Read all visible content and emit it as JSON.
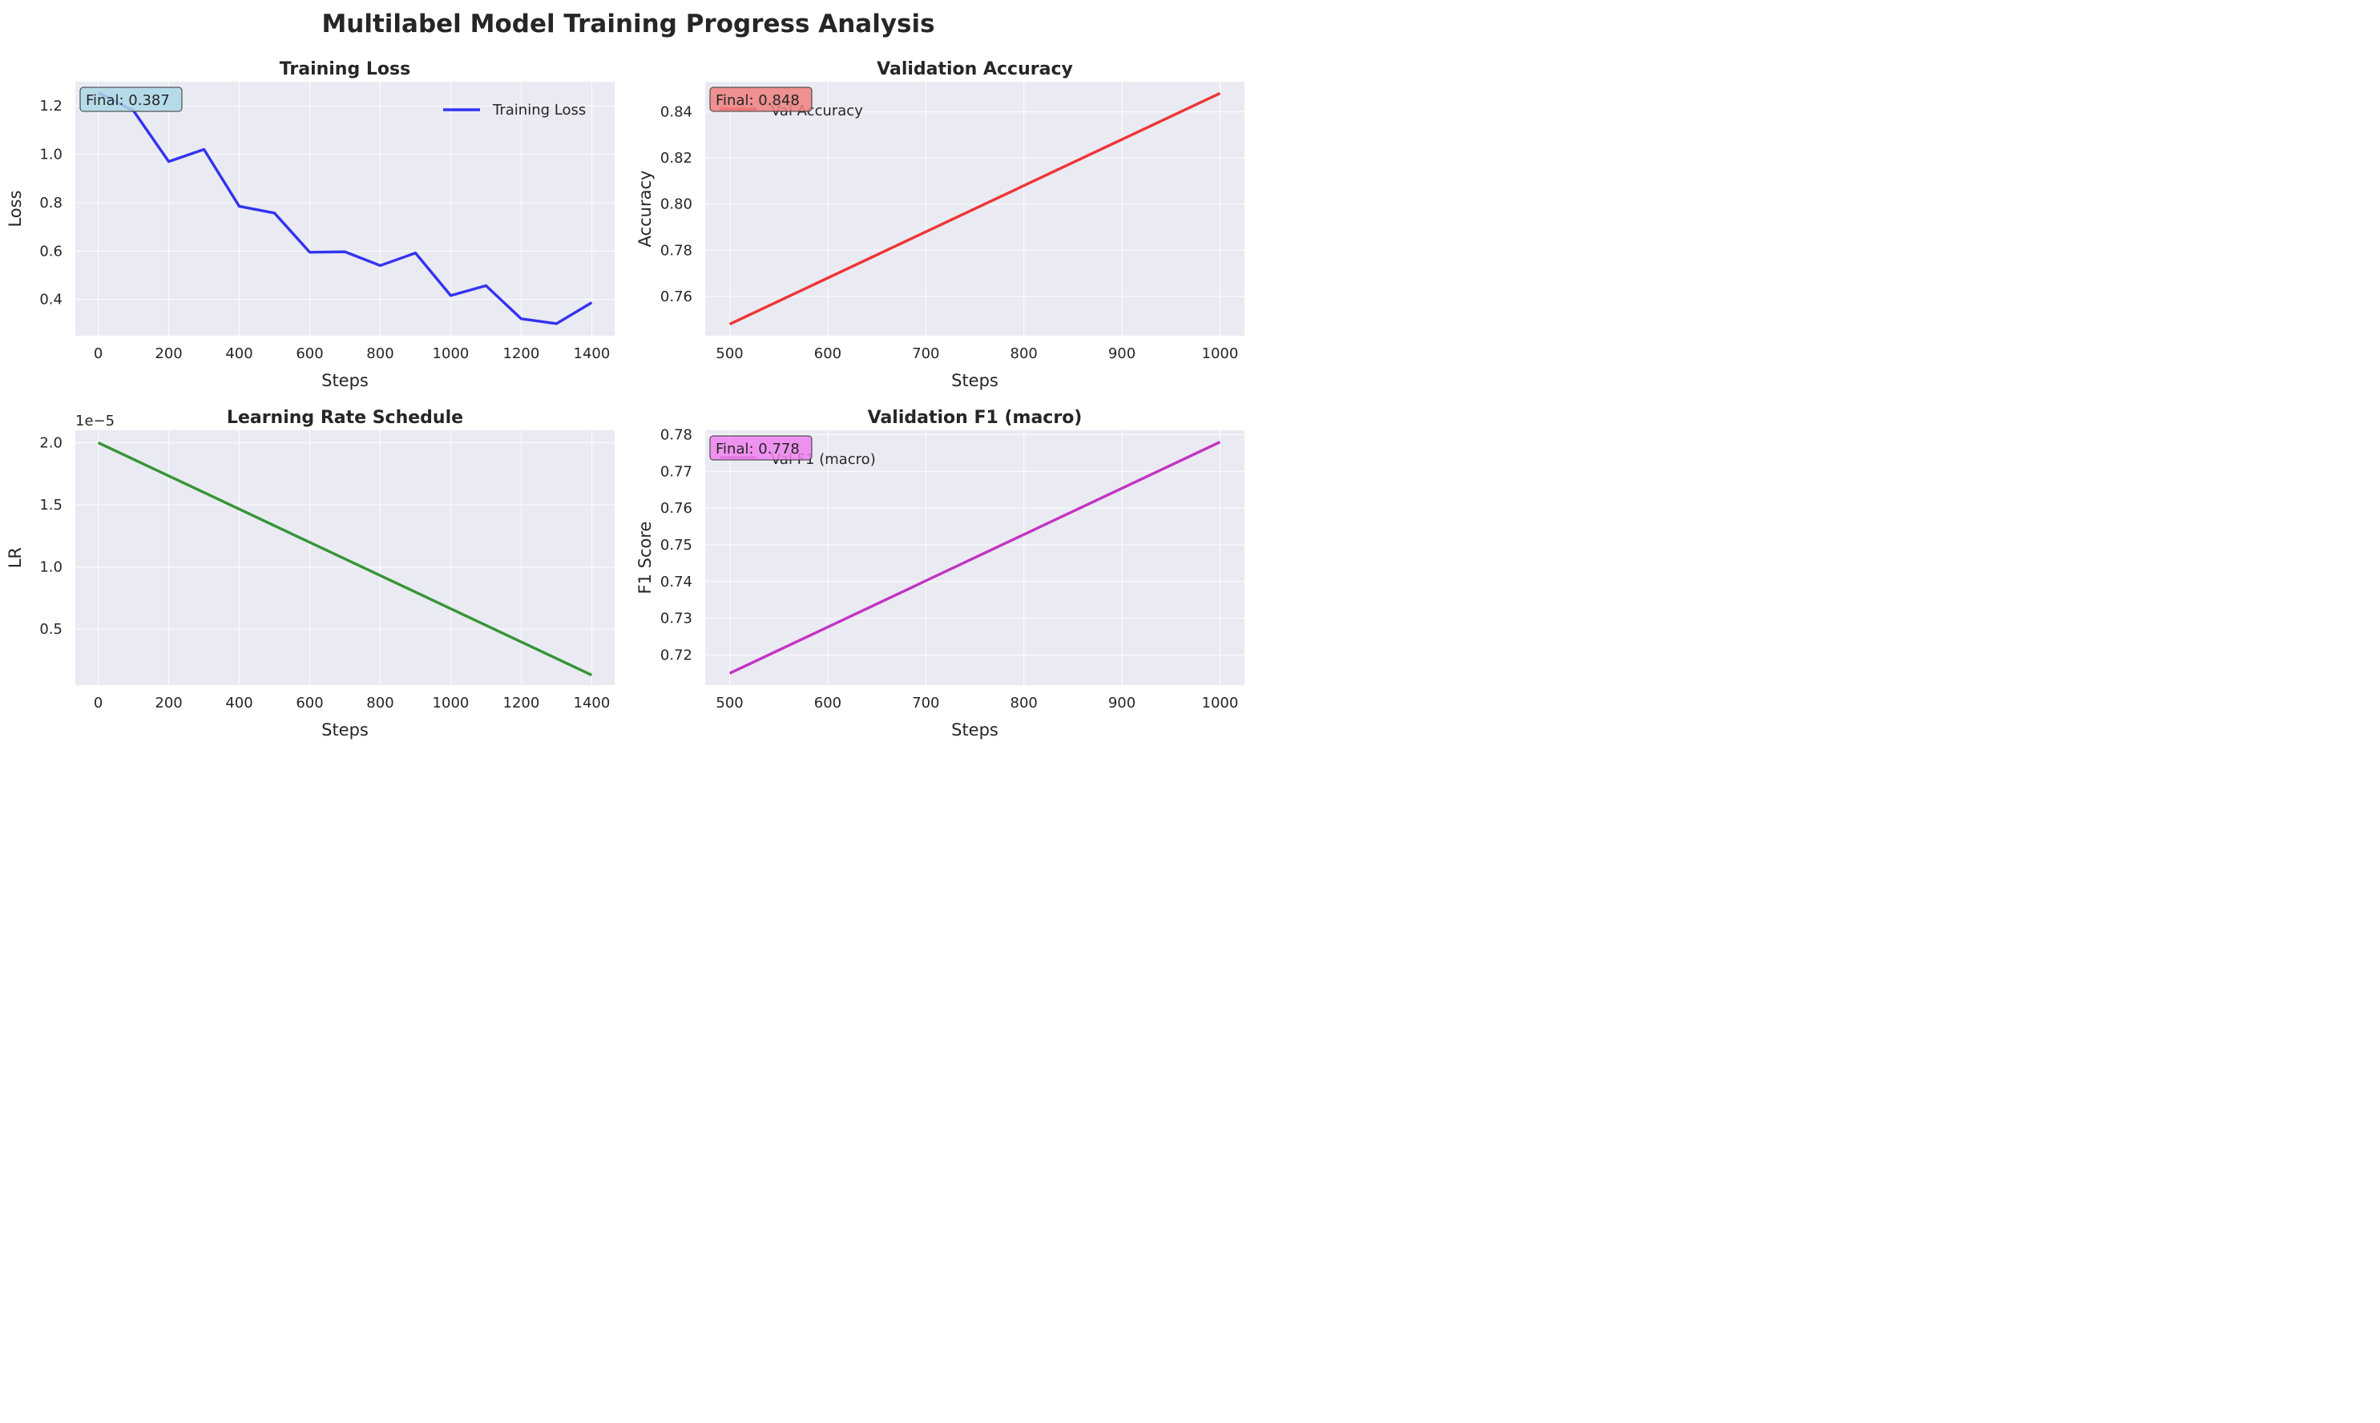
{
  "figure": {
    "title": "Multilabel Model Training Progress Analysis"
  },
  "chart_data": [
    {
      "type": "line",
      "title": "Training Loss",
      "xlabel": "Steps",
      "ylabel": "Loss",
      "xlim": [
        -65,
        1465
      ],
      "ylim": [
        0.25,
        1.3
      ],
      "xticks": [
        0,
        200,
        400,
        600,
        800,
        1000,
        1200,
        1400
      ],
      "xtick_labels": [
        "0",
        "200",
        "400",
        "600",
        "800",
        "1000",
        "1200",
        "1400"
      ],
      "yticks": [
        0.4,
        0.6,
        0.8,
        1.0,
        1.2
      ],
      "ytick_labels": [
        "0.4",
        "0.6",
        "0.8",
        "1.0",
        "1.2"
      ],
      "offset_label": "",
      "grid": true,
      "legend": {
        "placement": "upper right",
        "entries": [
          "Training Loss"
        ]
      },
      "annotation": {
        "text": "Final: 0.387",
        "placement": "top-left",
        "box_color": "#add8e6"
      },
      "series": [
        {
          "name": "Training Loss",
          "color": "#1f1ff0",
          "x": [
            0,
            100,
            200,
            300,
            400,
            500,
            600,
            700,
            800,
            900,
            1000,
            1100,
            1200,
            1300,
            1400
          ],
          "y": [
            1.255,
            1.18,
            0.97,
            1.02,
            0.785,
            0.757,
            0.595,
            0.597,
            0.54,
            0.592,
            0.416,
            0.457,
            0.32,
            0.3,
            0.387
          ]
        }
      ]
    },
    {
      "type": "line",
      "title": "Validation Accuracy",
      "xlabel": "Steps",
      "ylabel": "Accuracy",
      "xlim": [
        475,
        1025
      ],
      "ylim": [
        0.743,
        0.853
      ],
      "xticks": [
        500,
        600,
        700,
        800,
        900,
        1000
      ],
      "xtick_labels": [
        "500",
        "600",
        "700",
        "800",
        "900",
        "1000"
      ],
      "yticks": [
        0.76,
        0.78,
        0.8,
        0.82,
        0.84
      ],
      "ytick_labels": [
        "0.76",
        "0.78",
        "0.80",
        "0.82",
        "0.84"
      ],
      "offset_label": "",
      "grid": true,
      "legend": {
        "placement": "upper left",
        "entries": [
          "Val Accuracy"
        ]
      },
      "annotation": {
        "text": "Final: 0.848",
        "placement": "top-left",
        "box_color": "#f08080"
      },
      "series": [
        {
          "name": "Val Accuracy",
          "color": "#f02020",
          "x": [
            500,
            1000
          ],
          "y": [
            0.748,
            0.848
          ]
        }
      ]
    },
    {
      "type": "line",
      "title": "Learning Rate Schedule",
      "xlabel": "Steps",
      "ylabel": "LR",
      "xlim": [
        -65,
        1465
      ],
      "ylim": [
        0.05,
        2.1
      ],
      "xticks": [
        0,
        200,
        400,
        600,
        800,
        1000,
        1200,
        1400
      ],
      "xtick_labels": [
        "0",
        "200",
        "400",
        "600",
        "800",
        "1000",
        "1200",
        "1400"
      ],
      "yticks": [
        0.5,
        1.0,
        1.5,
        2.0
      ],
      "ytick_labels": [
        "0.5",
        "1.0",
        "1.5",
        "2.0"
      ],
      "offset_label": "1e−5",
      "grid": true,
      "legend": null,
      "annotation": null,
      "series": [
        {
          "name": "",
          "color": "#228b22",
          "x": [
            0,
            1400
          ],
          "y": [
            2.0,
            0.13
          ]
        }
      ]
    },
    {
      "type": "line",
      "title": "Validation F1 (macro)",
      "xlabel": "Steps",
      "ylabel": "F1 Score",
      "xlim": [
        475,
        1025
      ],
      "ylim": [
        0.7118,
        0.7812
      ],
      "xticks": [
        500,
        600,
        700,
        800,
        900,
        1000
      ],
      "xtick_labels": [
        "500",
        "600",
        "700",
        "800",
        "900",
        "1000"
      ],
      "yticks": [
        0.72,
        0.73,
        0.74,
        0.75,
        0.76,
        0.77,
        0.78
      ],
      "ytick_labels": [
        "0.72",
        "0.73",
        "0.74",
        "0.75",
        "0.76",
        "0.77",
        "0.78"
      ],
      "offset_label": "",
      "grid": true,
      "legend": {
        "placement": "upper left",
        "entries": [
          "Val F1 (macro)"
        ]
      },
      "annotation": {
        "text": "Final: 0.778",
        "placement": "top-left",
        "box_color": "#ee82ee"
      },
      "series": [
        {
          "name": "Val F1 (macro)",
          "color": "#bf1fbf",
          "x": [
            500,
            1000
          ],
          "y": [
            0.715,
            0.778
          ]
        }
      ]
    }
  ]
}
